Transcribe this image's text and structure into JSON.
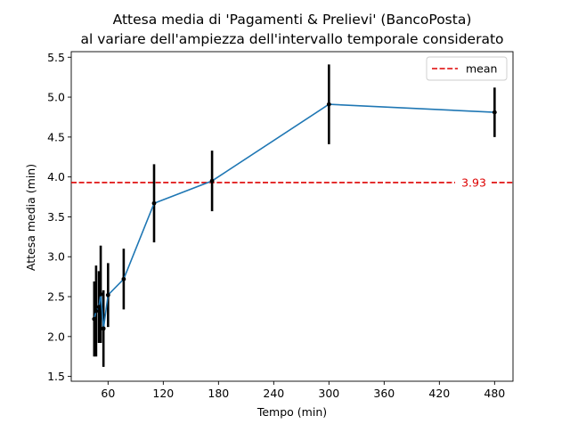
{
  "chart_data": {
    "type": "line",
    "title": "Attesa media di 'Pagamenti & Prelievi' (BancoPosta)",
    "subtitle": "al variare dell'ampiezza dell'intervallo temporale considerato",
    "xlabel": "Tempo (min)",
    "ylabel": "Attesa media (min)",
    "xlim": [
      20,
      500
    ],
    "ylim": [
      1.44,
      5.57
    ],
    "xticks": [
      60,
      120,
      180,
      240,
      300,
      360,
      420,
      480
    ],
    "xtick_labels": [
      "60",
      "120",
      "180",
      "240",
      "300",
      "360",
      "420",
      "480"
    ],
    "yticks": [
      1.5,
      2.0,
      2.5,
      3.0,
      3.5,
      4.0,
      4.5,
      5.0,
      5.5
    ],
    "ytick_labels": [
      "1.5",
      "2.0",
      "2.5",
      "3.0",
      "3.5",
      "4.0",
      "4.5",
      "5.0",
      "5.5"
    ],
    "series": [
      {
        "color": "#1f77b4",
        "x": [
          45,
          47,
          50,
          52,
          55,
          60,
          77,
          110,
          173,
          300,
          480
        ],
        "y": [
          2.22,
          2.32,
          2.37,
          2.53,
          2.1,
          2.52,
          2.72,
          3.67,
          3.95,
          4.91,
          4.81
        ],
        "error": [
          0.47,
          0.57,
          0.45,
          0.61,
          0.48,
          0.4,
          0.38,
          0.49,
          0.38,
          0.5,
          0.31
        ],
        "error_color": "#000000"
      }
    ],
    "hline": {
      "y": 3.93,
      "label": "3.93",
      "color": "#dd0000",
      "style": "dashed"
    },
    "legend": {
      "position": "top-right",
      "entries": [
        {
          "label": "mean",
          "color": "#dd0000",
          "style": "dashed"
        }
      ]
    },
    "grid": false
  }
}
